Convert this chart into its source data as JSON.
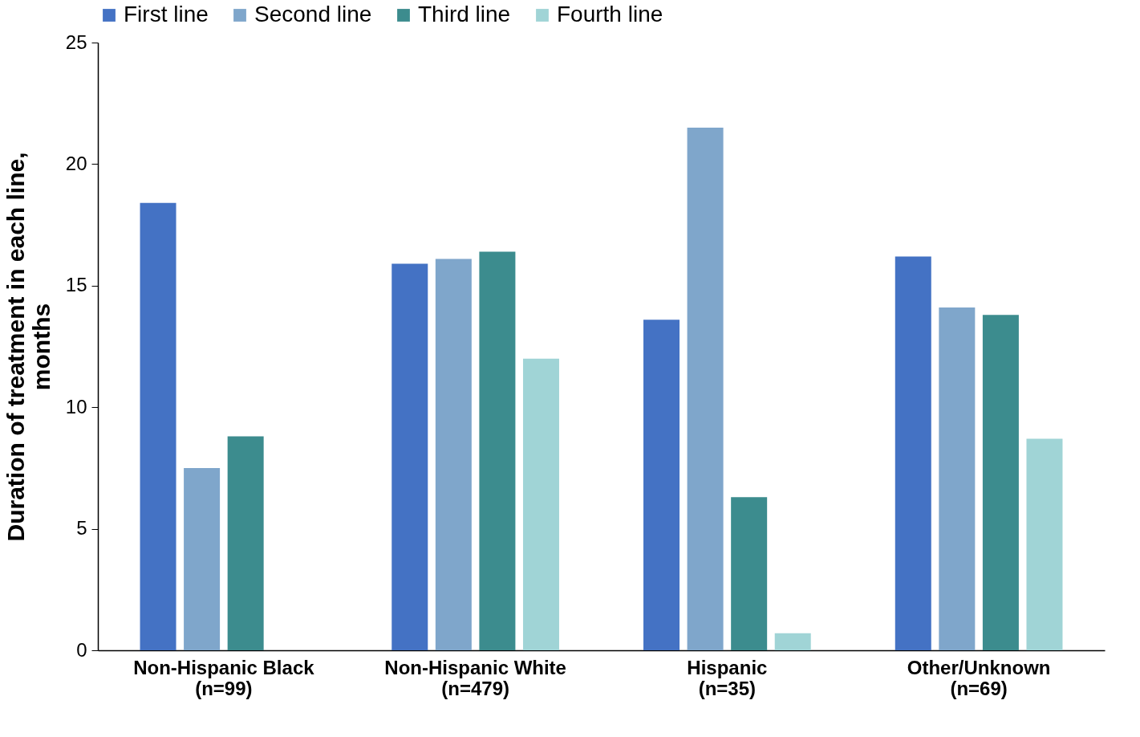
{
  "chart_data": {
    "type": "bar",
    "ylabel": "Duration of treatment in each line,\nmonths",
    "categories": [
      "Non-Hispanic Black\n(n=99)",
      "Non-Hispanic White\n(n=479)",
      "Hispanic\n(n=35)",
      "Other/Unknown\n(n=69)"
    ],
    "series": [
      {
        "name": "First line",
        "color": "#4472c4",
        "values": [
          18.4,
          15.9,
          13.6,
          16.2
        ]
      },
      {
        "name": "Second line",
        "color": "#7fa6cb",
        "values": [
          7.5,
          16.1,
          21.5,
          14.1
        ]
      },
      {
        "name": "Third line",
        "color": "#3c8c8e",
        "values": [
          8.8,
          16.4,
          6.3,
          13.8
        ]
      },
      {
        "name": "Fourth line",
        "color": "#a0d4d6",
        "values": [
          null,
          12.0,
          0.7,
          8.7
        ]
      }
    ],
    "ylim": [
      0,
      25
    ],
    "yticks": [
      0,
      5,
      10,
      15,
      20,
      25
    ],
    "grid": false,
    "legend": "top"
  }
}
